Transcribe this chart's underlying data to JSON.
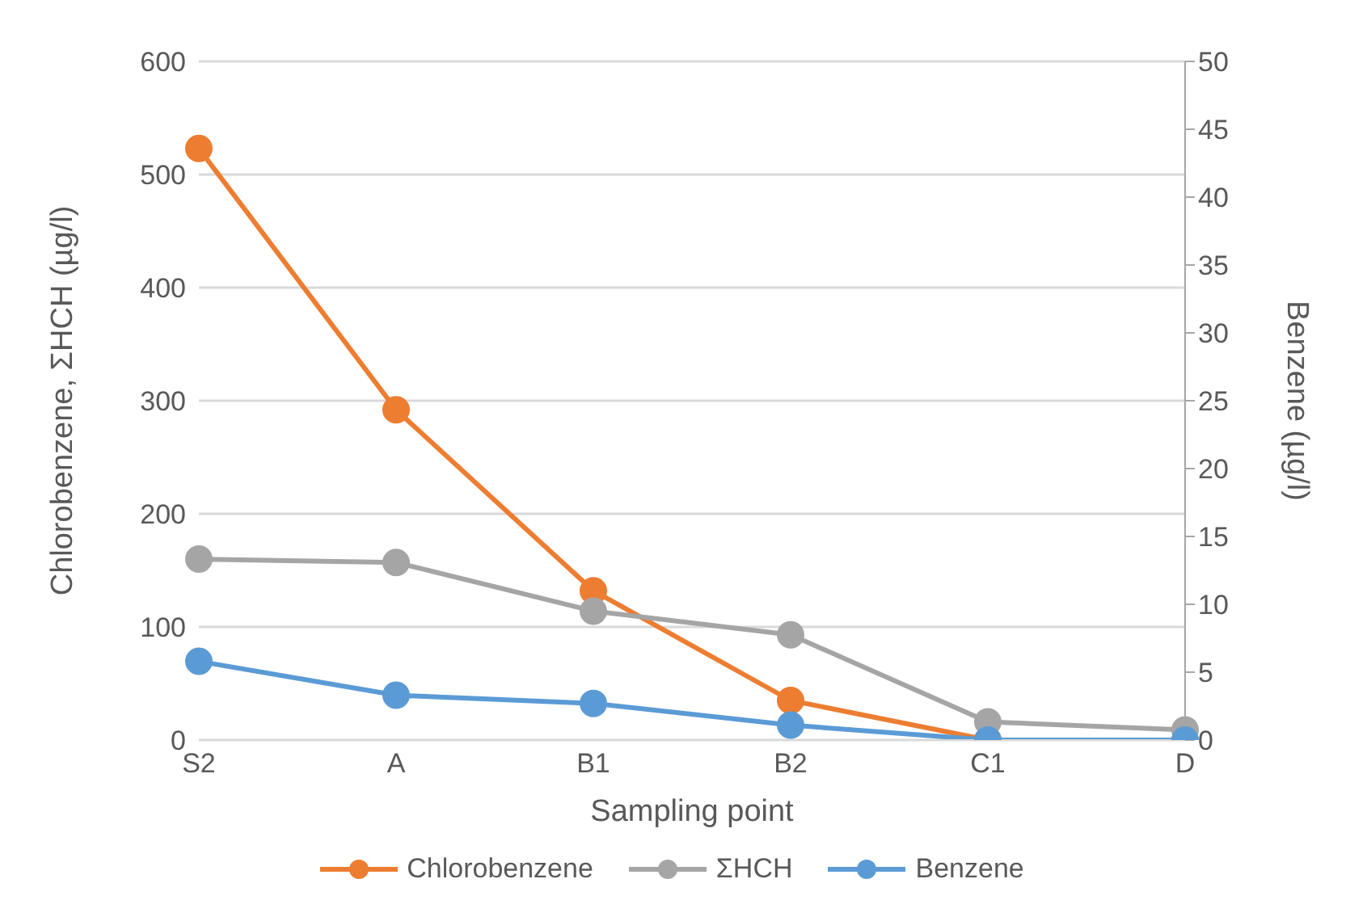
{
  "chart_data": {
    "type": "line",
    "xlabel": "Sampling point",
    "ylabel": "Chlorobenzene, ΣHCH (µg/l)",
    "y2label": "Benzene (µg/l)",
    "categories": [
      "S2",
      "A",
      "B1",
      "B2",
      "C1",
      "D"
    ],
    "series": [
      {
        "name": "Chlorobenzene",
        "color": "#ed7d31",
        "values": [
          523,
          292,
          132,
          35,
          0,
          0
        ]
      },
      {
        "name": "ΣHCH",
        "color": "#a5a5a5",
        "values": [
          160,
          157,
          114,
          93,
          16,
          9
        ]
      },
      {
        "name": "Benzene",
        "color": "#5b9bd5",
        "axis": "y2",
        "values": [
          5.8,
          3.3,
          2.7,
          1.1,
          0,
          0
        ]
      }
    ],
    "ylim": [
      0,
      600
    ],
    "yticks": [
      0,
      100,
      200,
      300,
      400,
      500,
      600
    ],
    "y2lim": [
      0,
      50
    ],
    "y2ticks": [
      0,
      5,
      10,
      15,
      20,
      25,
      30,
      35,
      40,
      45,
      50
    ],
    "grid": "y",
    "legend": "bottom",
    "marker": "circle",
    "line_style": "solid"
  }
}
